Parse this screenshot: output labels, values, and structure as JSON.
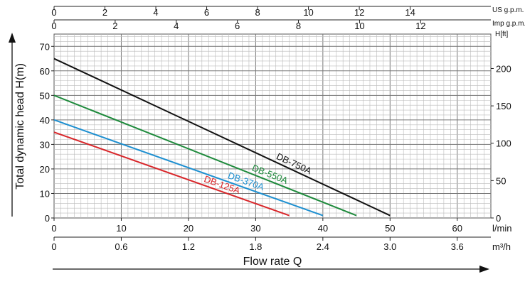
{
  "chart_data": {
    "type": "line",
    "x": {
      "label": "Flow rate Q",
      "unit": "l/min",
      "range": [
        0,
        65
      ],
      "ticks": [
        "0",
        "10",
        "20",
        "30",
        "40",
        "50",
        "60"
      ]
    },
    "x_m3h": {
      "unit": "m³/h",
      "ticks": [
        "0",
        "0.6",
        "1.2",
        "1.8",
        "2.4",
        "3.0",
        "3.6"
      ]
    },
    "x_us_gpm": {
      "unit": "US g.p.m.",
      "ticks": [
        "0",
        "2",
        "4",
        "6",
        "8",
        "10",
        "12",
        "14"
      ]
    },
    "x_imp_gpm": {
      "unit": "Imp g.p.m.",
      "ticks": [
        "0",
        "2",
        "4",
        "6",
        "8",
        "10",
        "12"
      ]
    },
    "y": {
      "label": "Total dynamic head H(m)",
      "range": [
        0,
        75
      ],
      "ticks": [
        "0",
        "10",
        "20",
        "30",
        "40",
        "50",
        "60",
        "70"
      ]
    },
    "y_ft": {
      "unit": "H[ft]",
      "ticks": [
        "0",
        "50",
        "100",
        "150",
        "200"
      ]
    },
    "grid": true,
    "series": [
      {
        "name": "DB-750A",
        "color": "#111111",
        "x": [
          0,
          50
        ],
        "y": [
          65,
          1
        ]
      },
      {
        "name": "DB-550A",
        "color": "#1e8a3c",
        "x": [
          0,
          45
        ],
        "y": [
          50,
          1
        ]
      },
      {
        "name": "DB-370A",
        "color": "#1d8fd0",
        "x": [
          0,
          40
        ],
        "y": [
          40,
          1
        ]
      },
      {
        "name": "DB-125A",
        "color": "#d8262a",
        "x": [
          0,
          35
        ],
        "y": [
          35,
          1
        ]
      }
    ]
  }
}
